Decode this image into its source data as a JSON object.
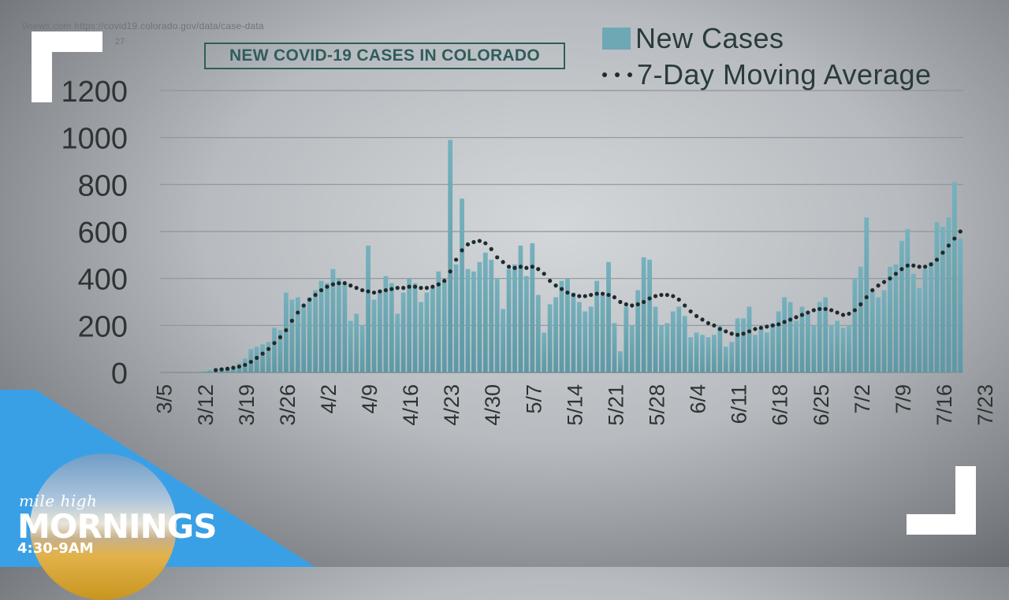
{
  "header": {
    "source": "9news.com https://covid19.colorado.gov/data/case-data",
    "source_date": "27",
    "title": "NEW COVID-19 CASES IN COLORADO"
  },
  "legend": {
    "bars_label": "New Cases",
    "line_label": "7-Day Moving Average"
  },
  "branding": {
    "line1": "mile high",
    "line2": "MORNINGS",
    "time": "4:30-9AM"
  },
  "colors": {
    "bar": "#6ea8b4",
    "line": "#1f2a2c",
    "grid": "#8e9599",
    "axis_text": "#2e3436",
    "brand_blue": "#3aa0e6"
  },
  "chart_data": {
    "type": "bar",
    "title": "NEW COVID-19 CASES IN COLORADO",
    "xlabel": "",
    "ylabel": "",
    "ylim": [
      0,
      1200
    ],
    "yticks": [
      0,
      200,
      400,
      600,
      800,
      1000,
      1200
    ],
    "grid": true,
    "legend_position": "top-right",
    "x_tick_labels": [
      "3/5",
      "3/12",
      "3/19",
      "3/26",
      "4/2",
      "4/9",
      "4/16",
      "4/23",
      "4/30",
      "5/7",
      "5/14",
      "5/21",
      "5/28",
      "6/4",
      "6/11",
      "6/18",
      "6/25",
      "7/2",
      "7/9",
      "7/16",
      "7/23"
    ],
    "start_date": "3/5",
    "series": [
      {
        "name": "New Cases",
        "type": "bar",
        "values": [
          0,
          0,
          0,
          0,
          0,
          0,
          0,
          5,
          10,
          15,
          20,
          20,
          25,
          40,
          60,
          100,
          110,
          120,
          130,
          190,
          180,
          340,
          310,
          320,
          290,
          320,
          350,
          390,
          380,
          440,
          400,
          380,
          220,
          250,
          200,
          540,
          310,
          350,
          410,
          380,
          250,
          340,
          400,
          380,
          300,
          340,
          360,
          430,
          390,
          990,
          460,
          740,
          440,
          430,
          470,
          510,
          480,
          400,
          270,
          440,
          460,
          540,
          410,
          550,
          330,
          170,
          290,
          320,
          390,
          400,
          340,
          300,
          260,
          280,
          390,
          330,
          470,
          210,
          90,
          280,
          200,
          350,
          490,
          480,
          280,
          200,
          210,
          260,
          280,
          240,
          150,
          170,
          160,
          150,
          160,
          200,
          110,
          130,
          230,
          230,
          280,
          160,
          190,
          170,
          210,
          260,
          320,
          300,
          220,
          280,
          260,
          200,
          300,
          320,
          200,
          220,
          190,
          200,
          400,
          450,
          660,
          350,
          320,
          350,
          450,
          460,
          560,
          610,
          420,
          360,
          440,
          470,
          640,
          620,
          660,
          810,
          570
        ]
      },
      {
        "name": "7-Day Moving Average",
        "type": "line",
        "values": [
          0,
          0,
          0,
          0,
          0,
          0,
          0,
          3,
          6,
          10,
          13,
          16,
          20,
          25,
          32,
          45,
          62,
          80,
          100,
          125,
          150,
          180,
          220,
          255,
          285,
          310,
          330,
          350,
          365,
          375,
          380,
          380,
          370,
          360,
          350,
          345,
          340,
          345,
          350,
          355,
          360,
          360,
          365,
          365,
          360,
          360,
          365,
          375,
          390,
          430,
          480,
          520,
          545,
          555,
          560,
          550,
          525,
          490,
          470,
          450,
          445,
          450,
          445,
          450,
          440,
          420,
          390,
          370,
          355,
          340,
          330,
          325,
          325,
          330,
          335,
          335,
          330,
          320,
          300,
          290,
          285,
          290,
          300,
          315,
          325,
          330,
          330,
          325,
          310,
          285,
          260,
          240,
          225,
          210,
          200,
          185,
          175,
          165,
          160,
          165,
          175,
          185,
          190,
          195,
          200,
          205,
          215,
          225,
          235,
          245,
          255,
          265,
          270,
          270,
          265,
          255,
          245,
          250,
          265,
          290,
          320,
          350,
          370,
          385,
          400,
          420,
          440,
          455,
          455,
          450,
          450,
          460,
          480,
          510,
          540,
          570,
          600
        ]
      }
    ]
  }
}
